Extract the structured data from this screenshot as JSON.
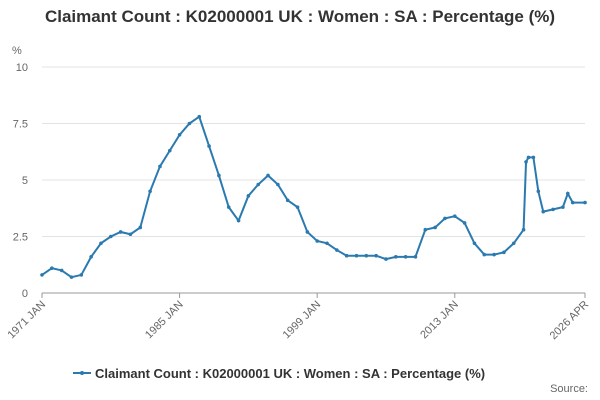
{
  "chart_data": {
    "type": "line",
    "title": "Claimant Count : K02000001 UK : Women : SA : Percentage (%)",
    "y_label": "%",
    "source_label": "Source:",
    "x": [
      "1971 JAN",
      "1972 JAN",
      "1973 JAN",
      "1974 JAN",
      "1975 JAN",
      "1976 JAN",
      "1977 JAN",
      "1978 JAN",
      "1979 JAN",
      "1980 JAN",
      "1981 JAN",
      "1982 JAN",
      "1983 JAN",
      "1984 JAN",
      "1985 JAN",
      "1986 JAN",
      "1987 JAN",
      "1988 JAN",
      "1989 JAN",
      "1990 JAN",
      "1991 JAN",
      "1992 JAN",
      "1993 JAN",
      "1994 JAN",
      "1995 JAN",
      "1996 JAN",
      "1997 JAN",
      "1998 JAN",
      "1999 JAN",
      "2000 JAN",
      "2001 JAN",
      "2002 JAN",
      "2003 JAN",
      "2004 JAN",
      "2005 JAN",
      "2006 JAN",
      "2007 JAN",
      "2008 JAN",
      "2009 JAN",
      "2010 JAN",
      "2011 JAN",
      "2012 JAN",
      "2013 JAN",
      "2014 JAN",
      "2015 JAN",
      "2016 JAN",
      "2017 JAN",
      "2018 JAN",
      "2019 JAN",
      "2020 JAN",
      "2020 APR",
      "2020 JUL",
      "2021 JAN",
      "2021 JUL",
      "2022 JAN",
      "2023 JAN",
      "2024 JAN",
      "2024 JUL",
      "2025 JAN",
      "2026 APR"
    ],
    "series": [
      {
        "name": "Claimant Count : K02000001 UK : Women : SA : Percentage (%)",
        "color": "#2a7ab0",
        "values": [
          0.8,
          1.1,
          1.0,
          0.7,
          0.8,
          1.6,
          2.2,
          2.5,
          2.7,
          2.6,
          2.9,
          4.5,
          5.6,
          6.3,
          7.0,
          7.5,
          7.8,
          6.5,
          5.2,
          3.8,
          3.2,
          4.3,
          4.8,
          5.2,
          4.8,
          4.1,
          3.8,
          2.7,
          2.3,
          2.2,
          1.9,
          1.65,
          1.65,
          1.65,
          1.65,
          1.5,
          1.6,
          1.6,
          1.6,
          2.8,
          2.9,
          3.3,
          3.4,
          3.1,
          2.2,
          1.7,
          1.7,
          1.8,
          2.2,
          2.8,
          5.8,
          6.0,
          6.0,
          4.5,
          3.6,
          3.7,
          3.8,
          4.4,
          4.0,
          4.0
        ]
      }
    ],
    "xlim": [
      "1971 JAN",
      "2026 APR"
    ],
    "xticks": [
      "1971 JAN",
      "1985 JAN",
      "1999 JAN",
      "2013 JAN",
      "2026 APR"
    ],
    "ylim": [
      0,
      10
    ],
    "yticks": [
      0,
      2.5,
      5,
      7.5,
      10
    ],
    "grid": true
  }
}
